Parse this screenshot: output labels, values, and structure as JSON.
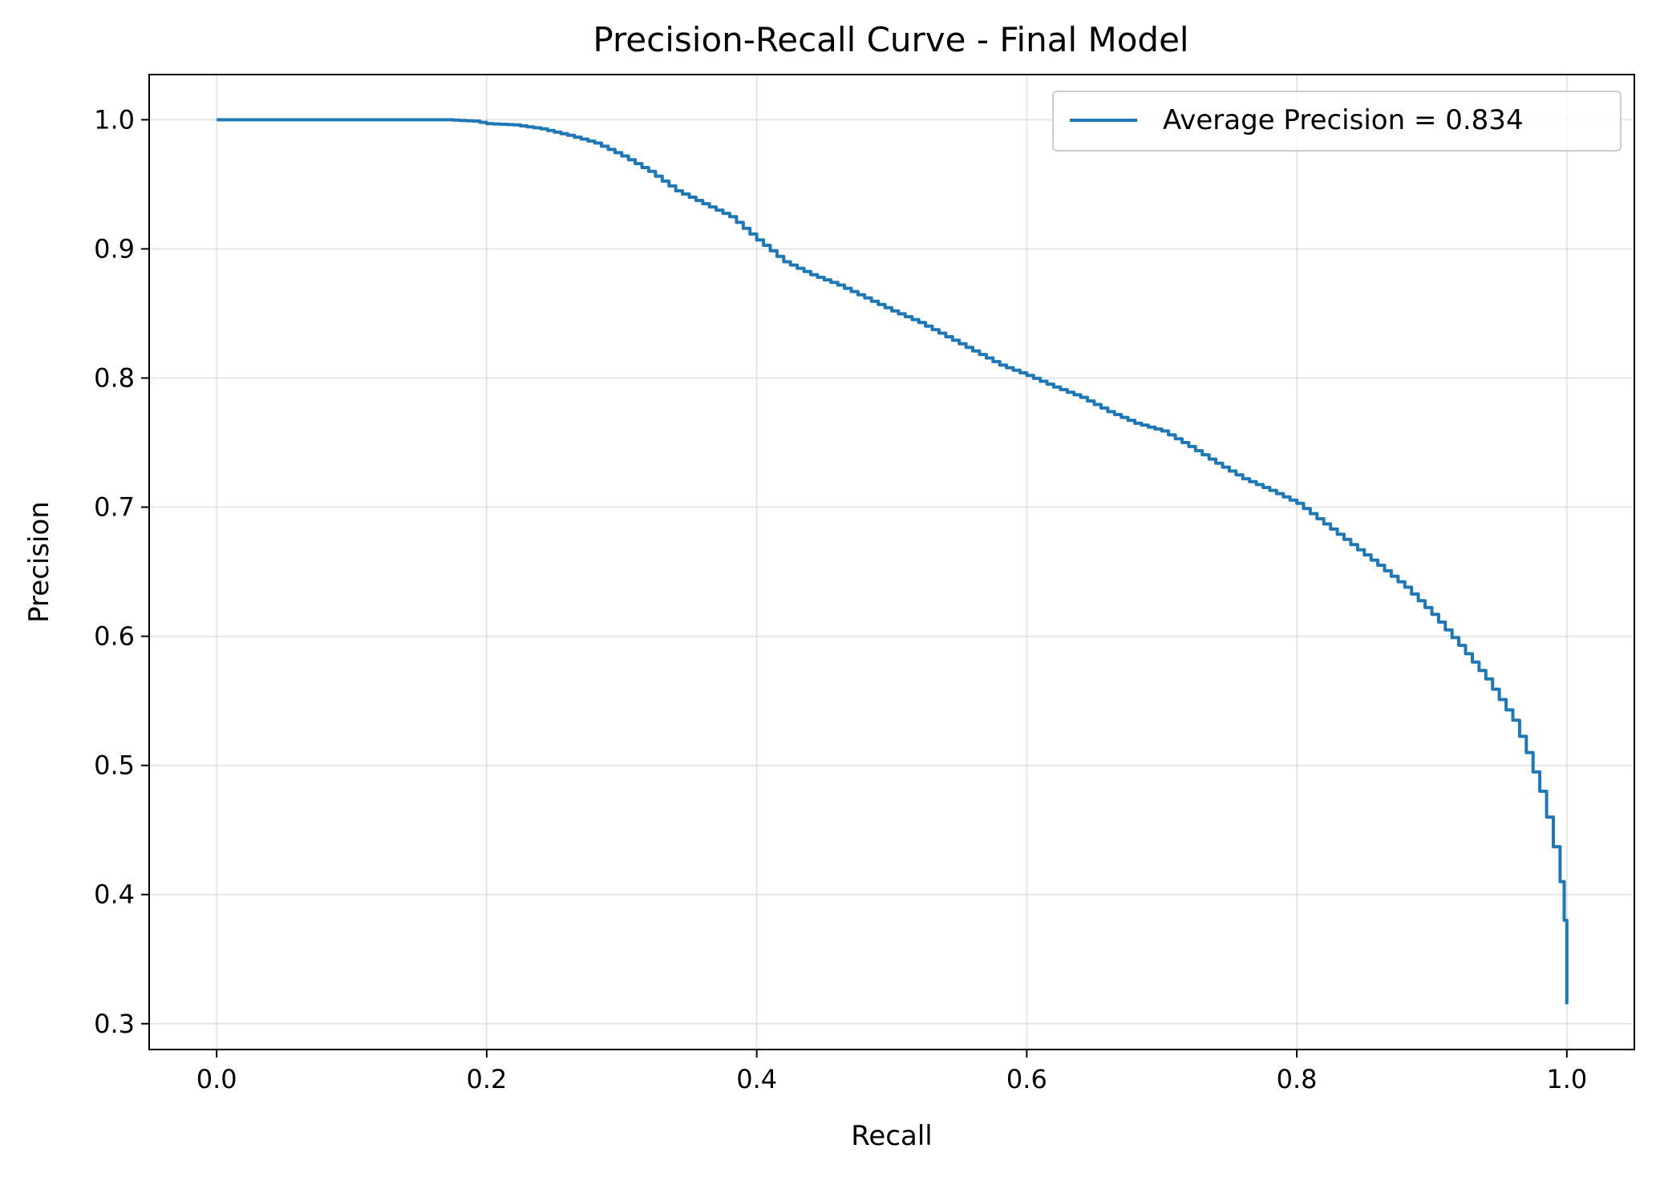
{
  "chart_data": {
    "type": "line",
    "title": "Precision-Recall Curve - Final Model",
    "xlabel": "Recall",
    "ylabel": "Precision",
    "xlim": [
      -0.05,
      1.05
    ],
    "ylim": [
      0.28,
      1.035
    ],
    "xticks": [
      0.0,
      0.2,
      0.4,
      0.6,
      0.8,
      1.0
    ],
    "xtick_labels": [
      "0.0",
      "0.2",
      "0.4",
      "0.6",
      "0.8",
      "1.0"
    ],
    "yticks": [
      0.3,
      0.4,
      0.5,
      0.6,
      0.7,
      0.8,
      0.9,
      1.0
    ],
    "ytick_labels": [
      "0.3",
      "0.4",
      "0.5",
      "0.6",
      "0.7",
      "0.8",
      "0.9",
      "1.0"
    ],
    "grid": true,
    "legend_position": "top-right",
    "series": [
      {
        "name": "Average Precision = 0.834",
        "color": "#1f77b4",
        "x": [
          0.0,
          0.05,
          0.1,
          0.15,
          0.17,
          0.19,
          0.2,
          0.22,
          0.24,
          0.26,
          0.28,
          0.3,
          0.32,
          0.34,
          0.36,
          0.38,
          0.4,
          0.42,
          0.44,
          0.46,
          0.48,
          0.5,
          0.52,
          0.54,
          0.56,
          0.58,
          0.6,
          0.62,
          0.64,
          0.66,
          0.68,
          0.7,
          0.72,
          0.74,
          0.76,
          0.78,
          0.8,
          0.82,
          0.84,
          0.86,
          0.88,
          0.9,
          0.92,
          0.94,
          0.95,
          0.96,
          0.97,
          0.98,
          0.985,
          0.99,
          0.995,
          0.998,
          1.0,
          1.0
        ],
        "y": [
          1.0,
          1.0,
          1.0,
          1.0,
          1.0,
          0.999,
          0.997,
          0.996,
          0.993,
          0.988,
          0.982,
          0.972,
          0.96,
          0.945,
          0.935,
          0.925,
          0.907,
          0.89,
          0.88,
          0.872,
          0.862,
          0.852,
          0.843,
          0.832,
          0.821,
          0.81,
          0.802,
          0.793,
          0.785,
          0.774,
          0.765,
          0.759,
          0.747,
          0.734,
          0.722,
          0.713,
          0.703,
          0.687,
          0.671,
          0.655,
          0.638,
          0.617,
          0.593,
          0.567,
          0.551,
          0.535,
          0.51,
          0.48,
          0.46,
          0.437,
          0.41,
          0.38,
          0.34,
          0.315
        ]
      }
    ]
  }
}
